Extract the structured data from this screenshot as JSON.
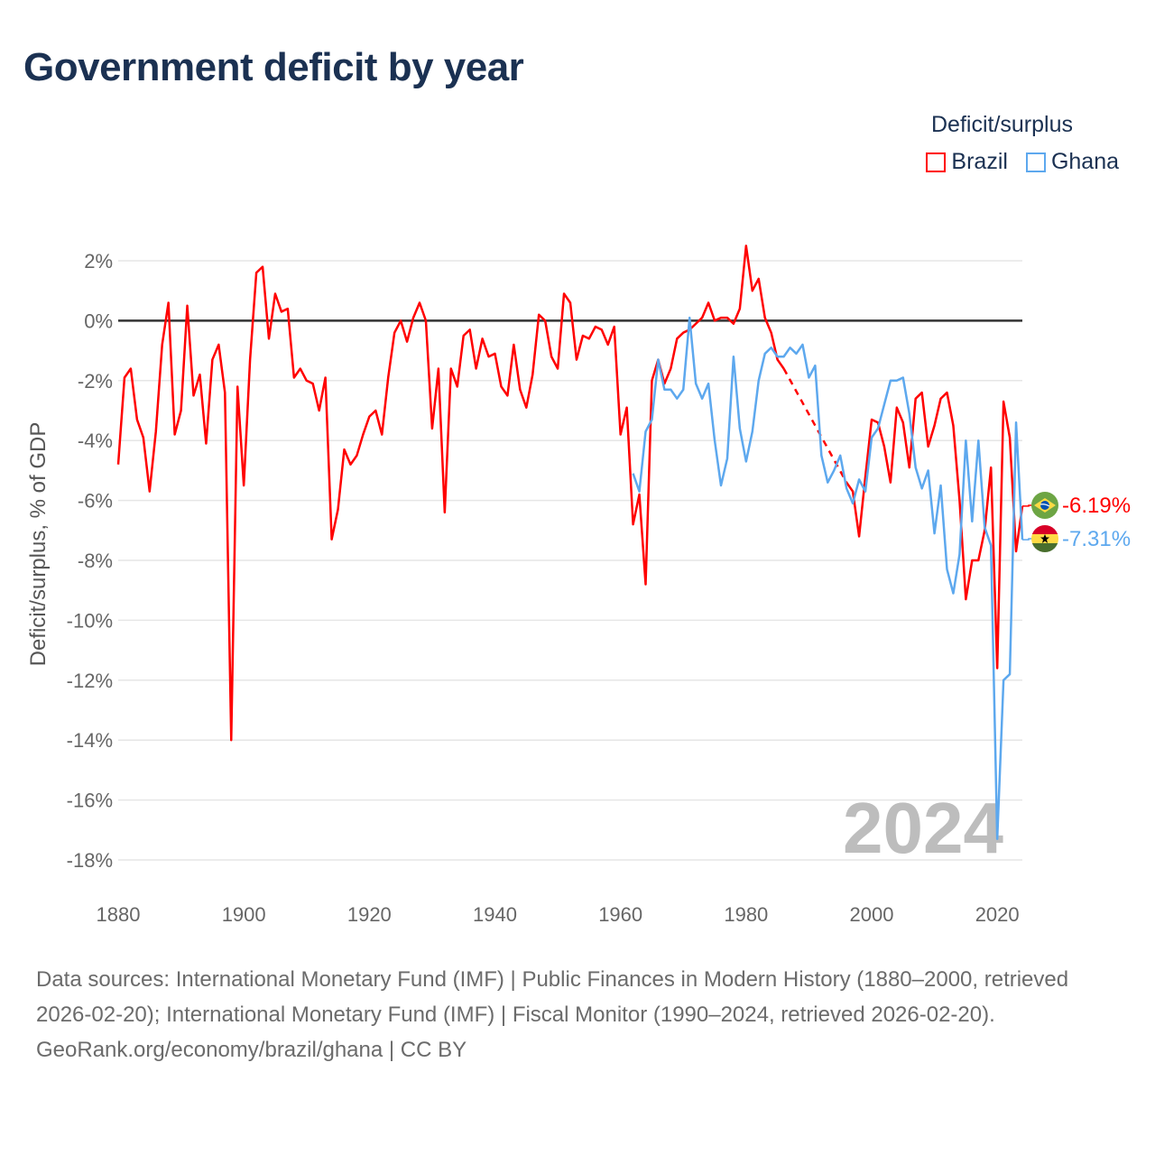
{
  "title": "Government deficit by year",
  "legend": {
    "title": "Deficit/surplus",
    "items": [
      {
        "label": "Brazil",
        "color": "#ff0000"
      },
      {
        "label": "Ghana",
        "color": "#5da8ee"
      }
    ]
  },
  "current_year": "2024",
  "footer": {
    "sources": "Data sources: International Monetary Fund (IMF) | Public Finances in Modern History (1880–2000, retrieved 2026-02-20); International Monetary Fund (IMF) | Fiscal Monitor (1990–2024, retrieved 2026-02-20).",
    "credit": "GeoRank.org/economy/brazil/ghana | CC BY"
  },
  "chart_data": {
    "type": "line",
    "title": "Government deficit by year",
    "xlabel": "",
    "ylabel": "Deficit/surplus, % of GDP",
    "xlim": [
      1880,
      2024
    ],
    "ylim": [
      -18,
      2
    ],
    "x_ticks": [
      "1880",
      "1900",
      "1920",
      "1940",
      "1960",
      "1980",
      "2000",
      "2020"
    ],
    "y_ticks": [
      "2%",
      "0%",
      "-2%",
      "-4%",
      "-6%",
      "-8%",
      "-10%",
      "-12%",
      "-14%",
      "-16%",
      "-18%"
    ],
    "grid": true,
    "legend_position": "top-right",
    "series": [
      {
        "name": "Brazil",
        "color": "#ff0000",
        "start_year": 1880,
        "end_label": "-6.19%",
        "flag": "brazil-flag",
        "values": [
          -4.8,
          -1.9,
          -1.6,
          -3.3,
          -3.9,
          -5.7,
          -3.7,
          -0.8,
          0.6,
          -3.8,
          -3.0,
          0.5,
          -2.5,
          -1.8,
          -4.1,
          -1.3,
          -0.8,
          -2.4,
          -14.0,
          -2.2,
          -5.5,
          -1.3,
          1.6,
          1.8,
          -0.6,
          0.9,
          0.3,
          0.4,
          -1.9,
          -1.6,
          -2.0,
          -2.1,
          -3.0,
          -1.9,
          -7.3,
          -6.3,
          -4.3,
          -4.8,
          -4.5,
          -3.8,
          -3.2,
          -3.0,
          -3.8,
          -1.9,
          -0.4,
          0.0,
          -0.7,
          0.1,
          0.6,
          0.0,
          -3.6,
          -1.6,
          -6.4,
          -1.6,
          -2.2,
          -0.5,
          -0.3,
          -1.6,
          -0.6,
          -1.2,
          -1.1,
          -2.2,
          -2.5,
          -0.8,
          -2.3,
          -2.9,
          -1.8,
          0.2,
          0.0,
          -1.2,
          -1.6,
          0.9,
          0.6,
          -1.3,
          -0.5,
          -0.6,
          -0.2,
          -0.3,
          -0.8,
          -0.2,
          -3.8,
          -2.9,
          -6.8,
          -5.8,
          -8.8,
          -2.0,
          -1.3,
          -2.1,
          -1.6,
          -0.6,
          -0.4,
          -0.3,
          -0.1,
          0.1,
          0.6,
          0.0,
          0.1,
          0.1,
          -0.1,
          0.4,
          2.5,
          1.0,
          1.4,
          0.1,
          -0.4,
          -1.3,
          -1.6,
          null,
          null,
          null,
          null,
          null,
          null,
          null,
          null,
          null,
          -5.4,
          -5.7,
          -7.2,
          -5.2,
          -3.3,
          -3.4,
          -4.2,
          -5.4,
          -2.9,
          -3.4,
          -4.9,
          -2.6,
          -2.4,
          -4.2,
          -3.5,
          -2.6,
          -2.4,
          -3.5,
          -6.0,
          -9.3,
          -8.0,
          -8.0,
          -7.0,
          -4.9,
          -11.6,
          -2.7,
          -3.9,
          -7.7,
          -6.19
        ]
      },
      {
        "name": "Ghana",
        "color": "#5da8ee",
        "start_year": 1962,
        "end_label": "-7.31%",
        "flag": "ghana-flag",
        "values": [
          -5.1,
          -5.7,
          -3.7,
          -3.3,
          -1.3,
          -2.3,
          -2.3,
          -2.6,
          -2.3,
          0.1,
          -2.1,
          -2.6,
          -2.1,
          -4.0,
          -5.5,
          -4.6,
          -1.2,
          -3.6,
          -4.7,
          -3.7,
          -2.0,
          -1.1,
          -0.9,
          -1.2,
          -1.2,
          -0.9,
          -1.1,
          -0.8,
          -1.9,
          -1.5,
          -4.5,
          -5.4,
          -5.0,
          -4.5,
          -5.6,
          -6.1,
          -5.3,
          -5.7,
          -3.9,
          -3.6,
          -2.8,
          -2.0,
          -2.0,
          -1.9,
          -3.1,
          -4.9,
          -5.6,
          -5.0,
          -7.1,
          -5.5,
          -8.3,
          -9.1,
          -7.8,
          -4.0,
          -6.7,
          -4.0,
          -6.9,
          -7.5,
          -17.3,
          -12.0,
          -11.8,
          -3.4,
          -7.31
        ]
      }
    ]
  }
}
